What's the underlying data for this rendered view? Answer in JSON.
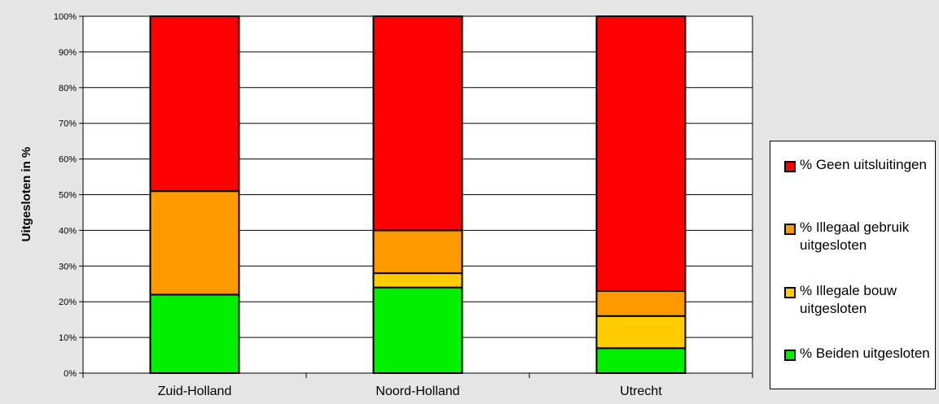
{
  "chart_data": {
    "type": "bar",
    "stacked": true,
    "title": "",
    "xlabel": "",
    "ylabel": "Uitgesloten in %",
    "ylim": [
      0,
      100
    ],
    "y_ticks": [
      "0%",
      "10%",
      "20%",
      "30%",
      "40%",
      "50%",
      "60%",
      "70%",
      "80%",
      "90%",
      "100%"
    ],
    "grid": "horizontal",
    "legend_position": "right",
    "categories": [
      "Zuid-Holland",
      "Noord-Holland",
      "Utrecht"
    ],
    "series": [
      {
        "name": "% Beiden uitgesloten",
        "color": "#00ee00",
        "values": [
          22,
          24,
          7
        ]
      },
      {
        "name": "% Illegale bouw uitgesloten",
        "color": "#ffcc00",
        "values": [
          0,
          4,
          9
        ]
      },
      {
        "name": "% Illegaal gebruik uitgesloten",
        "color": "#ff9900",
        "values": [
          29,
          12,
          7
        ]
      },
      {
        "name": "% Geen uitsluitingen",
        "color": "#ff0000",
        "values": [
          49,
          60,
          77
        ]
      }
    ]
  }
}
